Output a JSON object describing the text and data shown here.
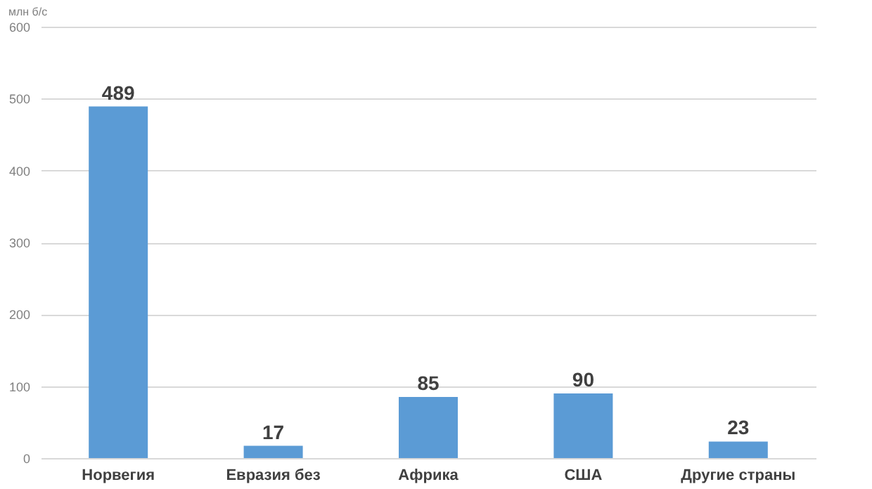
{
  "chart_data": {
    "type": "bar",
    "ylabel": "млн б/с",
    "categories": [
      "Норвегия",
      "Евразия без",
      "Африка",
      "США",
      "Другие страны"
    ],
    "values": [
      489,
      17,
      85,
      90,
      23
    ],
    "color": "#5b9bd5",
    "ylim": [
      0,
      600
    ],
    "yticks": [
      0,
      100,
      200,
      300,
      400,
      500,
      600
    ],
    "grid": "y",
    "data_labels": true
  }
}
